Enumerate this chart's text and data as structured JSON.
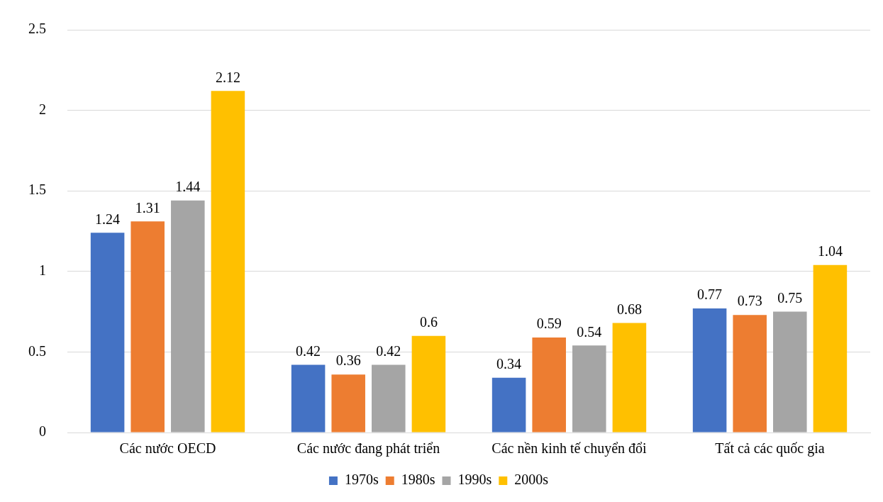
{
  "chart_data": {
    "type": "bar",
    "categories": [
      "Các nước OECD",
      "Các nước đang phát triển",
      "Các nền kinh tế chuyển đổi",
      "Tất cả các quốc gia"
    ],
    "series": [
      {
        "name": "1970s",
        "color": "#4472c4",
        "values": [
          1.24,
          0.42,
          0.34,
          0.77
        ]
      },
      {
        "name": "1980s",
        "color": "#ed7d31",
        "values": [
          1.31,
          0.36,
          0.59,
          0.73
        ]
      },
      {
        "name": "1990s",
        "color": "#a5a5a5",
        "values": [
          1.44,
          0.42,
          0.54,
          0.75
        ]
      },
      {
        "name": "2000s",
        "color": "#ffc000",
        "values": [
          2.12,
          0.6,
          0.68,
          1.04
        ]
      }
    ],
    "ylim": [
      0,
      2.5
    ],
    "yticks": [
      0,
      0.5,
      1,
      1.5,
      2,
      2.5
    ],
    "grid": "y",
    "legend": "bottom",
    "data_labels": true
  }
}
